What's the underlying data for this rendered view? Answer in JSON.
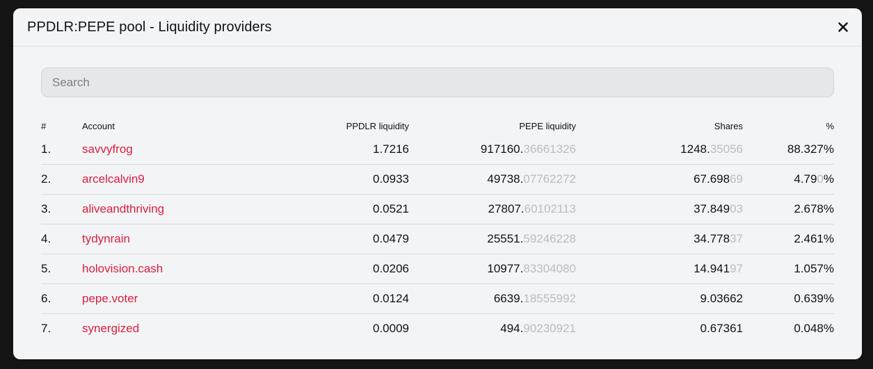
{
  "modal": {
    "title": "PPDLR:PEPE pool - Liquidity providers",
    "close_icon": "close-icon"
  },
  "search": {
    "placeholder": "Search",
    "value": ""
  },
  "table": {
    "headers": {
      "index": "#",
      "account": "Account",
      "ppdlr": "PPDLR liquidity",
      "pepe": "PEPE liquidity",
      "shares": "Shares",
      "percent": "%"
    },
    "rows": [
      {
        "index": "1.",
        "account": "savvyfrog",
        "ppdlr": "1.7216",
        "pepe_main": "917160.",
        "pepe_faded": "36661326",
        "shares_main": "1248.",
        "shares_faded": "35056",
        "pct_main": "88.327%",
        "pct_faded": "",
        "pct_suffix": ""
      },
      {
        "index": "2.",
        "account": "arcelcalvin9",
        "ppdlr": "0.0933",
        "pepe_main": "49738.",
        "pepe_faded": "07762272",
        "shares_main": "67.698",
        "shares_faded": "69",
        "pct_main": "4.79",
        "pct_faded": "0",
        "pct_suffix": "%"
      },
      {
        "index": "3.",
        "account": "aliveandthriving",
        "ppdlr": "0.0521",
        "pepe_main": "27807.",
        "pepe_faded": "60102113",
        "shares_main": "37.849",
        "shares_faded": "03",
        "pct_main": "2.678%",
        "pct_faded": "",
        "pct_suffix": ""
      },
      {
        "index": "4.",
        "account": "tydynrain",
        "ppdlr": "0.0479",
        "pepe_main": "25551.",
        "pepe_faded": "59246228",
        "shares_main": "34.778",
        "shares_faded": "37",
        "pct_main": "2.461%",
        "pct_faded": "",
        "pct_suffix": ""
      },
      {
        "index": "5.",
        "account": "holovision.cash",
        "ppdlr": "0.0206",
        "pepe_main": "10977.",
        "pepe_faded": "83304080",
        "shares_main": "14.941",
        "shares_faded": "97",
        "pct_main": "1.057%",
        "pct_faded": "",
        "pct_suffix": ""
      },
      {
        "index": "6.",
        "account": "pepe.voter",
        "ppdlr": "0.0124",
        "pepe_main": "6639.",
        "pepe_faded": "18555992",
        "shares_main": "9.03662",
        "shares_faded": "",
        "pct_main": "0.639%",
        "pct_faded": "",
        "pct_suffix": ""
      },
      {
        "index": "7.",
        "account": "synergized",
        "ppdlr": "0.0009",
        "pepe_main": "494.",
        "pepe_faded": "90230921",
        "shares_main": "0.67361",
        "shares_faded": "",
        "pct_main": "0.048%",
        "pct_faded": "",
        "pct_suffix": ""
      }
    ]
  },
  "colors": {
    "backdrop": "#141414",
    "modal_bg": "#f3f4f6",
    "account_link": "#dc1e3d",
    "faded_digits": "#b9bcc1"
  }
}
